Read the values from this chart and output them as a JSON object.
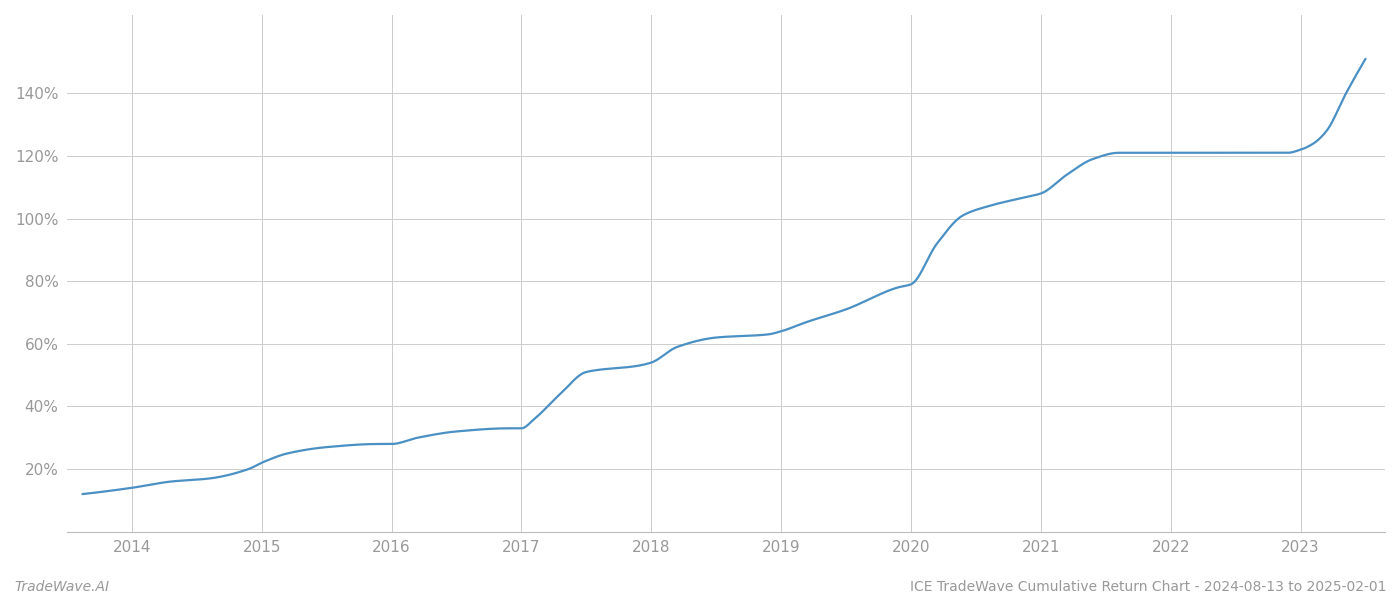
{
  "title": "",
  "footer_left": "TradeWave.AI",
  "footer_right": "ICE TradeWave Cumulative Return Chart - 2024-08-13 to 2025-02-01",
  "line_color": "#4a90c4",
  "background_color": "#ffffff",
  "grid_color": "#cccccc",
  "x_years": [
    2014,
    2015,
    2016,
    2017,
    2018,
    2019,
    2020,
    2021,
    2022,
    2023
  ],
  "key_x": [
    2013.62,
    2014.0,
    2014.3,
    2014.6,
    2014.9,
    2015.0,
    2015.2,
    2015.5,
    2015.9,
    2016.0,
    2016.2,
    2016.5,
    2016.9,
    2017.0,
    2017.1,
    2017.3,
    2017.5,
    2017.9,
    2018.0,
    2018.2,
    2018.5,
    2018.9,
    2019.0,
    2019.2,
    2019.5,
    2019.9,
    2020.0,
    2020.2,
    2020.4,
    2020.6,
    2020.9,
    2021.0,
    2021.2,
    2021.4,
    2021.6,
    2021.9,
    2022.0,
    2022.3,
    2022.6,
    2022.9,
    2023.0,
    2023.1,
    2023.2,
    2023.35,
    2023.5
  ],
  "key_y": [
    12,
    14,
    16,
    17,
    20,
    22,
    25,
    27,
    28,
    28,
    30,
    32,
    33,
    33,
    36,
    44,
    51,
    53,
    54,
    59,
    62,
    63,
    64,
    67,
    71,
    78,
    79,
    92,
    101,
    104,
    107,
    108,
    114,
    119,
    121,
    121,
    121,
    121,
    121,
    121,
    122,
    124,
    128,
    140,
    151
  ],
  "yticks": [
    20,
    40,
    60,
    80,
    100,
    120,
    140
  ],
  "ylim": [
    0,
    165
  ],
  "xlim": [
    2013.5,
    2023.65
  ],
  "tick_label_color": "#999999",
  "tick_fontsize": 11,
  "footer_fontsize": 10,
  "line_width": 1.6
}
